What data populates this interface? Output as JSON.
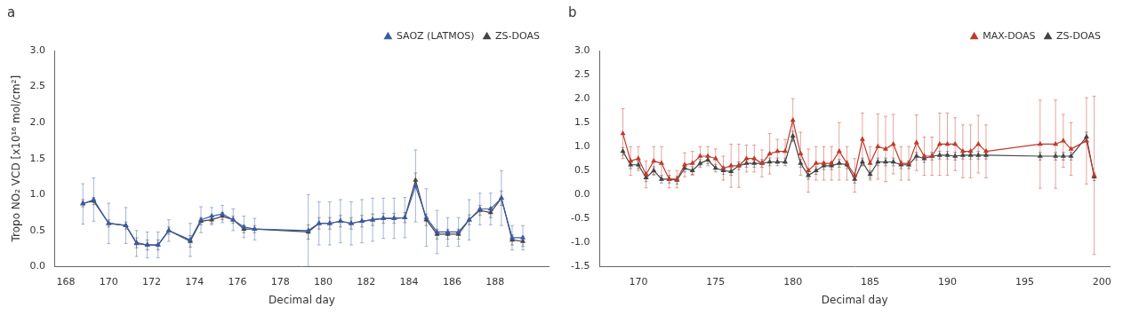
{
  "chart_data": [
    {
      "type": "line",
      "title": "a",
      "xlabel": "Decimal day",
      "ylabel": "Tropo NO₂ VCD [x10¹⁶ mol/cm²]",
      "x": [
        168.8,
        169.3,
        170.0,
        170.8,
        171.3,
        171.8,
        172.3,
        172.8,
        173.8,
        174.3,
        174.8,
        175.3,
        175.8,
        176.3,
        176.8,
        179.3,
        179.8,
        180.3,
        180.8,
        181.3,
        181.8,
        182.3,
        182.8,
        183.3,
        183.8,
        184.3,
        184.8,
        185.3,
        185.8,
        186.3,
        186.8,
        187.3,
        187.8,
        188.3,
        188.8,
        189.3
      ],
      "series": [
        {
          "name": "SAOZ (LATMOS)",
          "color": "#3a5aaa",
          "marker": "triangle",
          "line_style": "solid",
          "values": [
            0.87,
            0.93,
            0.6,
            0.57,
            0.32,
            0.3,
            0.3,
            0.5,
            0.37,
            0.65,
            0.7,
            0.73,
            0.65,
            0.55,
            0.52,
            0.5,
            0.6,
            0.6,
            0.63,
            0.6,
            0.63,
            0.65,
            0.67,
            0.67,
            0.68,
            1.12,
            0.68,
            0.48,
            0.48,
            0.48,
            0.65,
            0.8,
            0.8,
            0.95,
            0.4,
            0.4
          ],
          "yerr": [
            0.28,
            0.3,
            0.28,
            0.25,
            0.18,
            0.18,
            0.18,
            0.15,
            0.23,
            0.18,
            0.12,
            0.12,
            0.15,
            0.15,
            0.15,
            0.5,
            0.3,
            0.3,
            0.3,
            0.3,
            0.3,
            0.3,
            0.28,
            0.28,
            0.28,
            0.5,
            0.4,
            0.3,
            0.2,
            0.2,
            0.28,
            0.22,
            0.22,
            0.38,
            0.17,
            0.17
          ]
        },
        {
          "name": "ZS-DOAS",
          "color": "#444444",
          "marker": "triangle",
          "line_style": "solid",
          "values": [
            0.88,
            0.91,
            0.6,
            0.57,
            0.33,
            0.3,
            0.3,
            0.5,
            0.35,
            0.63,
            0.65,
            0.7,
            0.65,
            0.52,
            0.52,
            0.48,
            0.6,
            0.6,
            0.63,
            0.6,
            0.63,
            0.65,
            0.67,
            0.67,
            0.68,
            1.2,
            0.65,
            0.45,
            0.45,
            0.45,
            0.65,
            0.78,
            0.75,
            0.95,
            0.37,
            0.35
          ],
          "yerr": [
            0.05,
            0.05,
            0.05,
            0.05,
            0.07,
            0.07,
            0.07,
            0.05,
            0.08,
            0.05,
            0.05,
            0.05,
            0.05,
            0.05,
            0.05,
            0.1,
            0.08,
            0.08,
            0.08,
            0.08,
            0.08,
            0.08,
            0.07,
            0.07,
            0.07,
            0.1,
            0.08,
            0.07,
            0.07,
            0.07,
            0.07,
            0.07,
            0.07,
            0.1,
            0.07,
            0.07
          ]
        }
      ],
      "xlim": [
        167.5,
        190.5
      ],
      "ylim": [
        0,
        3.0
      ],
      "xticks": [
        168,
        170,
        172,
        174,
        176,
        178,
        180,
        182,
        184,
        186,
        188
      ],
      "yticks": [
        {
          "value": 0,
          "label": "0.0"
        },
        0.5,
        {
          "value": 1.0,
          "label": "1.0"
        },
        1.5,
        {
          "value": 2.0,
          "label": "2.0"
        },
        2.5,
        {
          "value": 3.0,
          "label": "3.0"
        }
      ],
      "grid": false,
      "legend": "upper right"
    },
    {
      "type": "line",
      "title": "b",
      "xlabel": "Decimal day",
      "x": [
        169.0,
        169.5,
        170.0,
        170.5,
        171.0,
        171.5,
        172.0,
        172.5,
        173.0,
        173.5,
        174.0,
        174.5,
        175.0,
        175.5,
        176.0,
        176.5,
        177.0,
        177.5,
        178.0,
        178.5,
        179.0,
        179.5,
        180.0,
        180.5,
        181.0,
        181.5,
        182.0,
        182.5,
        183.0,
        183.5,
        184.0,
        184.5,
        185.0,
        185.5,
        186.0,
        186.5,
        187.0,
        187.5,
        188.0,
        188.5,
        189.0,
        189.5,
        190.0,
        190.5,
        191.0,
        191.5,
        192.0,
        192.5,
        196.0,
        197.0,
        197.5,
        198.0,
        199.0,
        199.5
      ],
      "series": [
        {
          "name": "MAX-DOAS",
          "color": "#c0392b",
          "marker": "triangle",
          "line_style": "solid",
          "values": [
            1.27,
            0.7,
            0.75,
            0.42,
            0.7,
            0.65,
            0.32,
            0.32,
            0.62,
            0.65,
            0.8,
            0.8,
            0.75,
            0.55,
            0.6,
            0.6,
            0.75,
            0.75,
            0.65,
            0.85,
            0.9,
            0.9,
            1.55,
            0.85,
            0.5,
            0.65,
            0.65,
            0.65,
            0.9,
            0.65,
            0.4,
            1.15,
            0.65,
            1.0,
            0.95,
            1.05,
            0.65,
            0.65,
            1.08,
            0.8,
            0.8,
            1.05,
            1.05,
            1.05,
            0.9,
            0.9,
            1.05,
            0.9,
            1.05,
            1.05,
            1.12,
            0.95,
            1.12,
            0.4
          ],
          "yerr": [
            0.52,
            0.3,
            0.25,
            0.28,
            0.3,
            0.35,
            0.18,
            0.18,
            0.25,
            0.25,
            0.2,
            0.2,
            0.2,
            0.25,
            0.45,
            0.45,
            0.28,
            0.28,
            0.28,
            0.42,
            0.25,
            0.25,
            0.45,
            0.45,
            0.45,
            0.35,
            0.35,
            0.35,
            0.6,
            0.35,
            0.35,
            0.55,
            0.35,
            0.68,
            0.68,
            0.62,
            0.35,
            0.35,
            0.58,
            0.4,
            0.4,
            0.65,
            0.65,
            0.55,
            0.55,
            0.55,
            0.6,
            0.55,
            0.92,
            0.92,
            0.55,
            0.55,
            0.9,
            1.65
          ]
        },
        {
          "name": "ZS-DOAS",
          "color": "#444444",
          "marker": "triangle",
          "line_style": "solid",
          "values": [
            0.9,
            0.62,
            0.62,
            0.35,
            0.5,
            0.32,
            0.32,
            0.3,
            0.55,
            0.5,
            0.65,
            0.72,
            0.55,
            0.5,
            0.48,
            0.6,
            0.65,
            0.65,
            0.65,
            0.68,
            0.68,
            0.68,
            1.22,
            0.65,
            0.4,
            0.5,
            0.6,
            0.6,
            0.65,
            0.62,
            0.32,
            0.68,
            0.42,
            0.68,
            0.68,
            0.68,
            0.62,
            0.62,
            0.8,
            0.75,
            0.8,
            0.82,
            0.82,
            0.8,
            0.82,
            0.82,
            0.82,
            0.82,
            0.8,
            0.8,
            0.8,
            0.8,
            1.2,
            0.37
          ],
          "yerr": [
            0.08,
            0.08,
            0.08,
            0.08,
            0.08,
            0.08,
            0.08,
            0.08,
            0.08,
            0.08,
            0.08,
            0.08,
            0.08,
            0.08,
            0.08,
            0.08,
            0.08,
            0.08,
            0.08,
            0.08,
            0.08,
            0.08,
            0.1,
            0.08,
            0.08,
            0.08,
            0.08,
            0.08,
            0.08,
            0.08,
            0.08,
            0.08,
            0.08,
            0.08,
            0.08,
            0.08,
            0.08,
            0.08,
            0.08,
            0.08,
            0.08,
            0.08,
            0.08,
            0.08,
            0.08,
            0.08,
            0.08,
            0.08,
            0.08,
            0.08,
            0.08,
            0.08,
            0.1,
            0.08
          ]
        }
      ],
      "xlim": [
        167.5,
        200.5
      ],
      "ylim": [
        -1.5,
        3.0
      ],
      "xticks": [
        170,
        175,
        180,
        185,
        190,
        195,
        200
      ],
      "yticks": [
        -1.5,
        {
          "value": -1.0,
          "label": "-1.0"
        },
        -0.5,
        {
          "value": 0,
          "label": "0.0"
        },
        0.5,
        {
          "value": 1.0,
          "label": "1.0"
        },
        1.5,
        {
          "value": 2.0,
          "label": "2.0"
        },
        2.5,
        {
          "value": 3.0,
          "label": "3.0"
        }
      ],
      "grid": false,
      "legend": "upper right"
    }
  ]
}
